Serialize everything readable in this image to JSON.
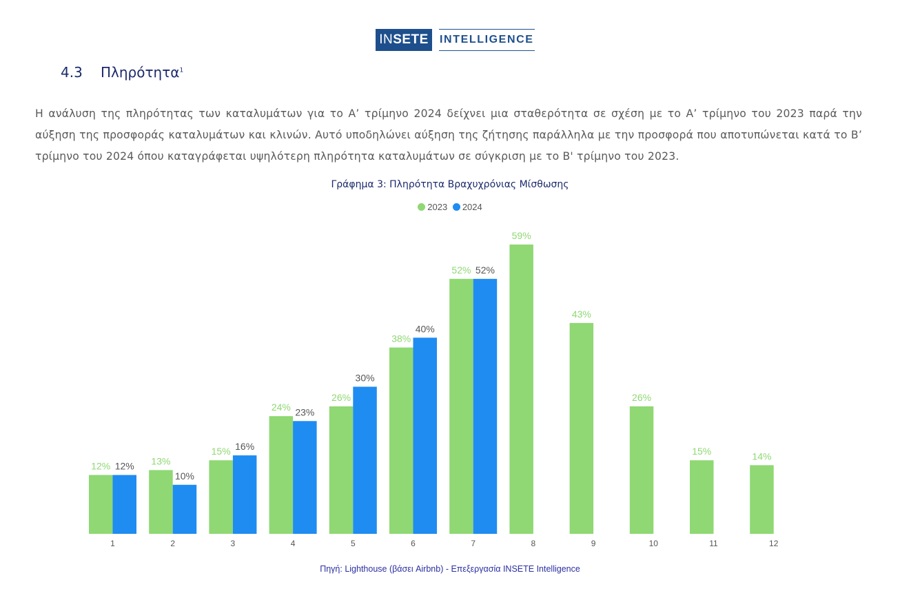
{
  "logo": {
    "brand_thin": "IN",
    "brand_bold": "SETE",
    "text": "INTELLIGENCE"
  },
  "section": {
    "number": "4.3",
    "title": "Πληρότητα",
    "footnote": "1"
  },
  "paragraph": "Η ανάλυση της πληρότητας των καταλυμάτων για το Α’ τρίμηνο 2024 δείχνει μια σταθερότητα σε σχέση με το Α’ τρίμηνο του 2023 παρά την αύξηση της προσφοράς καταλυμάτων και κλινών. Αυτό υποδηλώνει αύξηση της ζήτησης παράλληλα με την προσφορά που αποτυπώνεται κατά το Β’ τρίμηνο του 2024 όπου καταγράφεται υψηλότερη πληρότητα καταλυμάτων σε σύγκριση με το Β' τρίμηνο του 2023.",
  "colors": {
    "series_2023": "#8fd873",
    "series_2024": "#1f8cf2",
    "label_2023": "#8fd873",
    "label_2024": "#555555"
  },
  "chart_data": {
    "type": "bar",
    "title": "Γράφημα 3: Πληρότητα Βραχυχρόνιας Μίσθωσης",
    "categories": [
      "1",
      "2",
      "3",
      "4",
      "5",
      "6",
      "7",
      "8",
      "9",
      "10",
      "11",
      "12"
    ],
    "series": [
      {
        "name": "2023",
        "values": [
          12,
          13,
          15,
          24,
          26,
          38,
          52,
          59,
          43,
          26,
          15,
          14
        ],
        "labels": [
          "12%",
          "13%",
          "15%",
          "24%",
          "26%",
          "38%",
          "52%",
          "59%",
          "43%",
          "26%",
          "15%",
          "14%"
        ]
      },
      {
        "name": "2024",
        "values": [
          12,
          10,
          16,
          23,
          30,
          40,
          52,
          null,
          null,
          null,
          null,
          null
        ],
        "labels": [
          "12%",
          "10%",
          "16%",
          "23%",
          "30%",
          "40%",
          "52%",
          null,
          null,
          null,
          null,
          null
        ]
      }
    ],
    "ylim": [
      0,
      60
    ],
    "grid": false,
    "legend": "top-center"
  },
  "source": "Πηγή: Lighthouse (βάσει Airbnb) - Επεξεργασία INSETE Intelligence"
}
